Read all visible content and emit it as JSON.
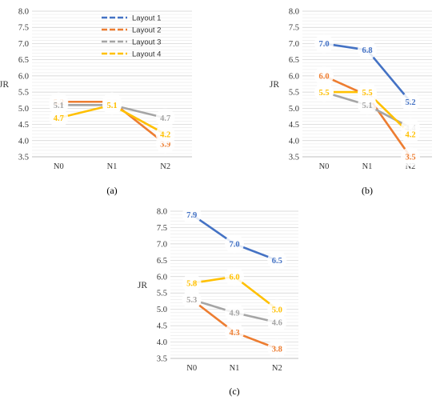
{
  "colors": {
    "Layout 1": "#4472C4",
    "Layout 2": "#ED7D31",
    "Layout 3": "#A5A5A5",
    "Layout 4": "#FFC000"
  },
  "legend": [
    "Layout 1",
    "Layout 2",
    "Layout 3",
    "Layout 4"
  ],
  "chart_data": [
    {
      "type": "line",
      "panel": "(a)",
      "caption": "(a)",
      "categories": [
        "N0",
        "N1",
        "N2"
      ],
      "ylabel": "JR",
      "ylim": [
        3.5,
        8.0
      ],
      "yticks": [
        "3.5",
        "4.0",
        "4.5",
        "5.0",
        "5.5",
        "6.0",
        "6.5",
        "7.0",
        "7.5",
        "8.0"
      ],
      "grid": true,
      "legend_position": "top-right",
      "series": [
        {
          "name": "Layout 1",
          "values": [
            null,
            null,
            null
          ]
        },
        {
          "name": "Layout 2",
          "values": [
            5.2,
            5.2,
            3.9
          ]
        },
        {
          "name": "Layout 3",
          "values": [
            5.1,
            5.1,
            4.7
          ]
        },
        {
          "name": "Layout 4",
          "values": [
            4.7,
            5.1,
            4.2
          ]
        }
      ]
    },
    {
      "type": "line",
      "panel": "(b)",
      "caption": "(b)",
      "categories": [
        "N0",
        "N1",
        "N2"
      ],
      "ylabel": "JR",
      "ylim": [
        3.5,
        8.0
      ],
      "yticks": [
        "3.5",
        "4.0",
        "4.5",
        "5.0",
        "5.5",
        "6.0",
        "6.5",
        "7.0",
        "7.5",
        "8.0"
      ],
      "grid": true,
      "series": [
        {
          "name": "Layout 1",
          "values": [
            7.0,
            6.8,
            5.2
          ]
        },
        {
          "name": "Layout 2",
          "values": [
            6.0,
            5.4,
            3.5
          ]
        },
        {
          "name": "Layout 3",
          "values": [
            5.5,
            5.1,
            4.4
          ]
        },
        {
          "name": "Layout 4",
          "values": [
            5.5,
            5.5,
            4.2
          ]
        }
      ]
    },
    {
      "type": "line",
      "panel": "(c)",
      "caption": "(c)",
      "categories": [
        "N0",
        "N1",
        "N2"
      ],
      "ylabel": "JR",
      "ylim": [
        3.5,
        8.0
      ],
      "yticks": [
        "3.5",
        "4.0",
        "4.5",
        "5.0",
        "5.5",
        "6.0",
        "6.5",
        "7.0",
        "7.5",
        "8.0"
      ],
      "grid": true,
      "series": [
        {
          "name": "Layout 1",
          "values": [
            7.9,
            7.0,
            6.5
          ]
        },
        {
          "name": "Layout 2",
          "values": [
            5.3,
            4.3,
            3.8
          ]
        },
        {
          "name": "Layout 3",
          "values": [
            5.3,
            4.9,
            4.6
          ]
        },
        {
          "name": "Layout 4",
          "values": [
            5.8,
            6.0,
            5.0
          ]
        }
      ]
    }
  ]
}
